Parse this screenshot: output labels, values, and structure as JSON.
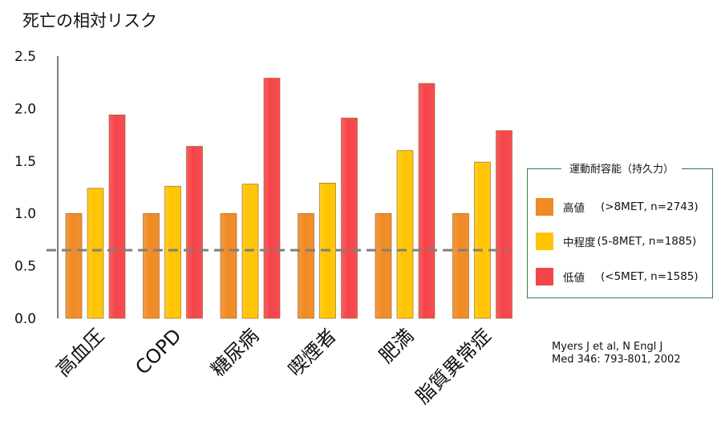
{
  "title": "死亡の相対リスク",
  "chart_data": {
    "type": "bar",
    "title": "死亡の相対リスク",
    "categories": [
      "高血圧",
      "COPD",
      "糖尿病",
      "喫煙者",
      "肥満",
      "脂質異常症"
    ],
    "series": [
      {
        "name": "高値",
        "detail": "(>8MET, n=2743)",
        "color": "#f08a24",
        "values": [
          1.0,
          1.0,
          1.0,
          1.0,
          1.0,
          1.0
        ]
      },
      {
        "name": "中程度",
        "detail": "(5-8MET, n=1885)",
        "color": "#ffc400",
        "values": [
          1.24,
          1.26,
          1.28,
          1.29,
          1.6,
          1.49
        ]
      },
      {
        "name": "低値",
        "detail": "(<5MET, n=1585)",
        "color": "#f5444a",
        "values": [
          1.94,
          1.64,
          2.29,
          1.91,
          2.24,
          1.79
        ]
      }
    ],
    "yticks": [
      "0.0",
      "0.5",
      "1.0",
      "1.5",
      "2.0",
      "2.5"
    ],
    "ylim": [
      0,
      2.5
    ],
    "reference_line": 0.65,
    "legend_title": "運動耐容能（持久力）",
    "legend_position": "right"
  },
  "citation": {
    "line1": "Myers J et al, N Engl J",
    "line2": "Med 346: 793-801, 2002"
  }
}
